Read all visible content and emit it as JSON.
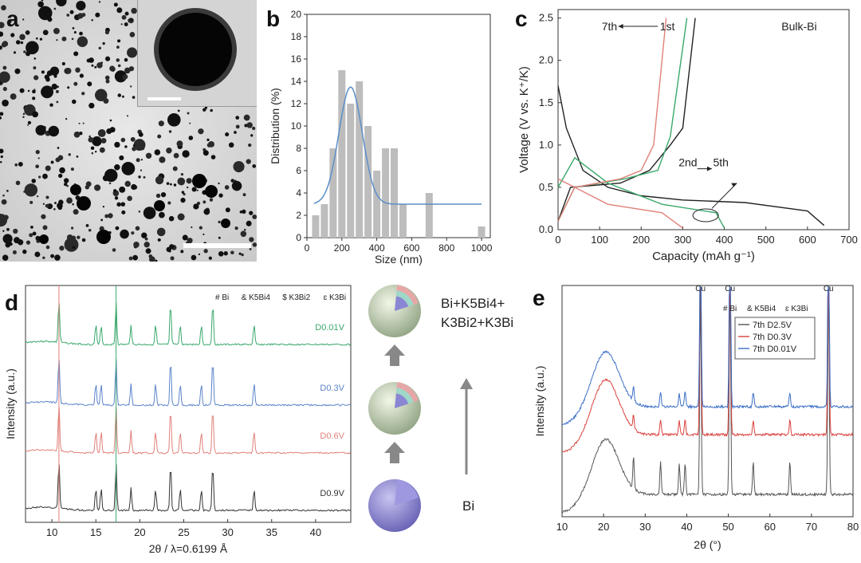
{
  "figure": {
    "panel_labels": {
      "a": "a",
      "b": "b",
      "c": "c",
      "d": "d",
      "e": "e"
    }
  },
  "panel_c": {
    "annotation_cycle_top": "7th ← 1st",
    "annotation_cycle_top_left": "7th",
    "annotation_cycle_top_right": "1st",
    "annotation_cycle_mid_left": "2nd",
    "annotation_cycle_mid_right": "5th",
    "material": "Bulk-Bi"
  },
  "panel_d": {
    "legend": [
      "# Bi",
      "& K5Bi4",
      "$ K3Bi2",
      "ɛ K3Bi"
    ],
    "trace_labels": [
      "D0.01V",
      "D0.3V",
      "D0.6V",
      "D0.9V"
    ],
    "trace_colors": [
      "#3aa86b",
      "#5b83c9",
      "#e0817a",
      "#333333"
    ]
  },
  "schematic": {
    "top_label": "Bi+K5Bi4+ K3Bi2+K3Bi",
    "bottom_label": "Bi"
  },
  "panel_e": {
    "cu_label": "Cu",
    "legend": [
      "7th D2.5V",
      "7th D0.3V",
      "7th D0.01V"
    ],
    "markers": [
      "# Bi",
      "& K5Bi4",
      "ɛ K3Bi"
    ],
    "trace_colors": [
      "#555555",
      "#d9423e",
      "#3b6fc6"
    ]
  },
  "chart_data": [
    {
      "type": "bar",
      "panel": "b",
      "xlabel": "Size (nm)",
      "ylabel": "Distribution (%)",
      "xlim": [
        0,
        1050
      ],
      "ylim": [
        0,
        20
      ],
      "x_ticks": [
        0,
        200,
        400,
        600,
        800,
        1000
      ],
      "y_ticks": [
        0,
        2,
        4,
        6,
        8,
        10,
        12,
        14,
        16,
        18,
        20
      ],
      "x": [
        50,
        100,
        150,
        200,
        250,
        300,
        350,
        400,
        450,
        500,
        550,
        700,
        1000
      ],
      "values": [
        2,
        3,
        8,
        15,
        12,
        14,
        10,
        6,
        8,
        8,
        3,
        4,
        1
      ],
      "fit": {
        "type": "gaussian",
        "peak_x": 250,
        "peak_y": 13.5,
        "baseline": 3
      }
    },
    {
      "type": "line",
      "panel": "c",
      "xlabel": "Capacity (mAh g⁻¹)",
      "ylabel": "Voltage (V vs. K⁺/K)",
      "xlim": [
        0,
        700
      ],
      "ylim": [
        0,
        2.6
      ],
      "x_ticks": [
        0,
        100,
        200,
        300,
        400,
        500,
        600,
        700
      ],
      "y_ticks": [
        0.0,
        0.5,
        1.0,
        1.5,
        2.0,
        2.5
      ],
      "series": [
        {
          "color": "#222222",
          "points": [
            [
              0,
              1.7
            ],
            [
              20,
              1.2
            ],
            [
              60,
              0.7
            ],
            [
              120,
              0.5
            ],
            [
              200,
              0.4
            ],
            [
              300,
              0.35
            ],
            [
              450,
              0.32
            ],
            [
              600,
              0.22
            ],
            [
              640,
              0.05
            ]
          ]
        },
        {
          "color": "#222222",
          "points": [
            [
              0,
              0.1
            ],
            [
              30,
              0.5
            ],
            [
              150,
              0.55
            ],
            [
              220,
              0.7
            ],
            [
              270,
              1.0
            ],
            [
              300,
              1.2
            ],
            [
              330,
              2.5
            ]
          ]
        },
        {
          "color": "#3aa86b",
          "points": [
            [
              0,
              0.5
            ],
            [
              40,
              0.85
            ],
            [
              120,
              0.55
            ],
            [
              250,
              0.3
            ],
            [
              380,
              0.2
            ],
            [
              400,
              0.02
            ]
          ]
        },
        {
          "color": "#3aa86b",
          "points": [
            [
              0,
              0.1
            ],
            [
              40,
              0.5
            ],
            [
              160,
              0.6
            ],
            [
              240,
              0.7
            ],
            [
              270,
              1.1
            ],
            [
              310,
              2.5
            ]
          ]
        },
        {
          "color": "#e0817a",
          "points": [
            [
              0,
              0.6
            ],
            [
              40,
              0.5
            ],
            [
              120,
              0.3
            ],
            [
              250,
              0.2
            ],
            [
              300,
              0.02
            ]
          ]
        },
        {
          "color": "#e0817a",
          "points": [
            [
              0,
              0.1
            ],
            [
              40,
              0.5
            ],
            [
              150,
              0.6
            ],
            [
              200,
              0.7
            ],
            [
              230,
              1.0
            ],
            [
              260,
              2.5
            ]
          ]
        }
      ]
    },
    {
      "type": "line",
      "panel": "d",
      "xlabel": "2θ / λ=0.6199 Å",
      "ylabel": "Intensity (a.u.)",
      "xlim": [
        7,
        44
      ],
      "x_ticks": [
        10,
        15,
        20,
        25,
        30,
        35,
        40
      ]
    },
    {
      "type": "line",
      "panel": "e",
      "xlabel": "2θ (°)",
      "ylabel": "Intensity (a.u.)",
      "xlim": [
        10,
        80
      ],
      "x_ticks": [
        10,
        20,
        30,
        40,
        50,
        60,
        70,
        80
      ]
    }
  ]
}
